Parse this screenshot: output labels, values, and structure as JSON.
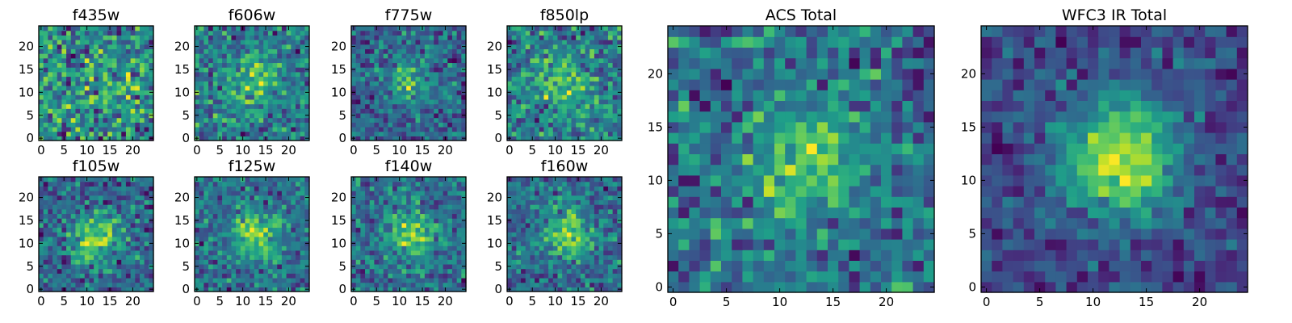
{
  "figure": {
    "panels": [
      {
        "title": "f435w"
      },
      {
        "title": "f606w"
      },
      {
        "title": "f775w"
      },
      {
        "title": "f850lp"
      },
      {
        "title": "f105w"
      },
      {
        "title": "f125w"
      },
      {
        "title": "f140w"
      },
      {
        "title": "f160w"
      },
      {
        "title": "ACS Total"
      },
      {
        "title": "WFC3 IR Total"
      }
    ]
  },
  "chart_data": [
    {
      "type": "heatmap",
      "title": "f435w",
      "x_ticks": [
        "0",
        "5",
        "10",
        "15",
        "20"
      ],
      "y_ticks": [
        "0",
        "5",
        "10",
        "15",
        "20"
      ],
      "grid": false,
      "size": [
        25,
        25
      ],
      "colormap": "viridis",
      "blob": {
        "center": [
          12,
          12
        ],
        "strength": 0.1,
        "noise": 0.35
      }
    },
    {
      "type": "heatmap",
      "title": "f606w",
      "x_ticks": [
        "0",
        "5",
        "10",
        "15",
        "20"
      ],
      "y_ticks": [
        "0",
        "5",
        "10",
        "15",
        "20"
      ],
      "grid": false,
      "size": [
        25,
        25
      ],
      "colormap": "viridis",
      "blob": {
        "center": [
          12.5,
          12.5
        ],
        "strength": 0.3,
        "noise": 0.32
      }
    },
    {
      "type": "heatmap",
      "title": "f775w",
      "x_ticks": [
        "0",
        "5",
        "10",
        "15",
        "20"
      ],
      "y_ticks": [
        "0",
        "5",
        "10",
        "15",
        "20"
      ],
      "grid": false,
      "size": [
        25,
        25
      ],
      "colormap": "viridis",
      "blob": {
        "center": [
          12,
          12.5
        ],
        "strength": 0.35,
        "noise": 0.3
      }
    },
    {
      "type": "heatmap",
      "title": "f850lp",
      "x_ticks": [
        "0",
        "5",
        "10",
        "15",
        "20"
      ],
      "y_ticks": [
        "0",
        "5",
        "10",
        "15",
        "20"
      ],
      "grid": false,
      "size": [
        25,
        25
      ],
      "colormap": "viridis",
      "blob": {
        "center": [
          12,
          12.5
        ],
        "strength": 0.35,
        "noise": 0.3
      }
    },
    {
      "type": "heatmap",
      "title": "f105w",
      "x_ticks": [
        "0",
        "5",
        "10",
        "15",
        "20"
      ],
      "y_ticks": [
        "0",
        "5",
        "10",
        "15",
        "20"
      ],
      "grid": false,
      "size": [
        25,
        25
      ],
      "colormap": "viridis",
      "blob": {
        "center": [
          12,
          11
        ],
        "strength": 0.4,
        "noise": 0.25
      }
    },
    {
      "type": "heatmap",
      "title": "f125w",
      "x_ticks": [
        "0",
        "5",
        "10",
        "15",
        "20"
      ],
      "y_ticks": [
        "0",
        "5",
        "10",
        "15",
        "20"
      ],
      "grid": false,
      "size": [
        25,
        25
      ],
      "colormap": "viridis",
      "blob": {
        "center": [
          12.5,
          12
        ],
        "strength": 0.4,
        "noise": 0.25
      }
    },
    {
      "type": "heatmap",
      "title": "f140w",
      "x_ticks": [
        "0",
        "5",
        "10",
        "15",
        "20"
      ],
      "y_ticks": [
        "0",
        "5",
        "10",
        "15",
        "20"
      ],
      "grid": false,
      "size": [
        25,
        25
      ],
      "colormap": "viridis",
      "blob": {
        "center": [
          12.5,
          12
        ],
        "strength": 0.4,
        "noise": 0.25
      }
    },
    {
      "type": "heatmap",
      "title": "f160w",
      "x_ticks": [
        "0",
        "5",
        "10",
        "15",
        "20"
      ],
      "y_ticks": [
        "0",
        "5",
        "10",
        "15",
        "20"
      ],
      "grid": false,
      "size": [
        25,
        25
      ],
      "colormap": "viridis",
      "blob": {
        "center": [
          13,
          12
        ],
        "strength": 0.4,
        "noise": 0.25
      }
    },
    {
      "type": "heatmap",
      "title": "ACS Total",
      "x_ticks": [
        "0",
        "5",
        "10",
        "15",
        "20"
      ],
      "y_ticks": [
        "0",
        "5",
        "10",
        "15",
        "20"
      ],
      "grid": false,
      "size": [
        25,
        25
      ],
      "colormap": "viridis",
      "blob": {
        "center": [
          12,
          11.5
        ],
        "strength": 0.35,
        "noise": 0.28
      }
    },
    {
      "type": "heatmap",
      "title": "WFC3 IR Total",
      "x_ticks": [
        "0",
        "5",
        "10",
        "15",
        "20"
      ],
      "y_ticks": [
        "0",
        "5",
        "10",
        "15",
        "20"
      ],
      "grid": false,
      "size": [
        25,
        25
      ],
      "colormap": "viridis",
      "blob": {
        "center": [
          12.5,
          12
        ],
        "strength": 0.7,
        "noise": 0.18
      }
    }
  ]
}
